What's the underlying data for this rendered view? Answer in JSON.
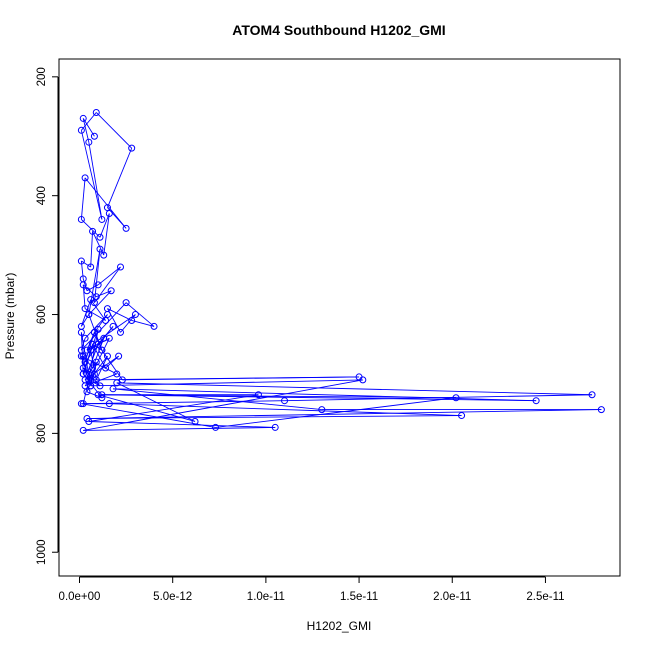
{
  "chart_data": {
    "type": "line",
    "title": "ATOM4 Southbound H1202_GMI",
    "xlabel": "H1202_GMI",
    "ylabel": "Pressure (mbar)",
    "xlim": [
      -1.1e-12,
      2.9e-11
    ],
    "ylim": [
      1040,
      170
    ],
    "y_reversed": true,
    "x_ticks": [
      0,
      5e-12,
      1e-11,
      1.5e-11,
      2e-11,
      2.5e-11
    ],
    "x_tick_labels": [
      "0.0e+00",
      "5.0e-12",
      "1.0e-11",
      "1.5e-11",
      "2.0e-11",
      "2.5e-11"
    ],
    "y_ticks": [
      200,
      400,
      600,
      800,
      1000
    ],
    "y_tick_labels": [
      "200",
      "400",
      "600",
      "800",
      "1000"
    ],
    "grid": false,
    "series": [
      {
        "color": "#0000ff",
        "x": [
          8e-13,
          2e-13,
          5e-13,
          1.2e-12,
          1e-13,
          9e-13,
          2.8e-12,
          1.5e-12,
          2.5e-12,
          3e-13,
          1e-13,
          1.1e-12,
          1.6e-12,
          1.3e-12,
          7e-13,
          6e-13,
          1e-13,
          2e-13,
          4e-13,
          1e-12,
          2.2e-12,
          8e-13,
          1.1e-12,
          5e-13,
          1.7e-12,
          9e-13,
          2e-13,
          3e-13,
          1.4e-12,
          6e-13,
          1e-13,
          5e-13,
          1.2e-12,
          8e-13,
          3e-13,
          1.8e-12,
          1e-12,
          4e-13,
          2e-13,
          7e-13,
          1.3e-12,
          6e-13,
          9e-13,
          1.5e-12,
          3e-13,
          2e-12,
          1e-13,
          5e-13,
          1.1e-12,
          2e-13,
          8e-13,
          4e-13,
          1.2e-12,
          2e-13,
          1e-13,
          6e-13,
          9e-13,
          3e-13,
          2.1e-12,
          1.4e-12,
          7e-13,
          2e-13,
          1e-12,
          5e-13,
          1.6e-12,
          4e-13,
          8e-13,
          1.5e-12,
          3e-13,
          1e-13,
          2.5e-12,
          4e-12,
          2.8e-12,
          1.5e-12,
          2.2e-12,
          3e-12,
          7e-13,
          1.2e-12,
          2.3e-12,
          1.5e-11,
          5e-13,
          2e-13,
          1.1e-11,
          2.75e-11,
          2e-12,
          6.2e-12,
          1e-12,
          2.45e-11,
          1.8e-12,
          1.3e-11,
          2.8e-11,
          4e-13,
          2.05e-11,
          1.6e-12,
          1e-13,
          7.3e-12,
          2.02e-11,
          1.2e-12,
          9.6e-12,
          5e-13,
          1.05e-11,
          2e-13,
          1.52e-11,
          6e-13
        ],
        "y": [
          300,
          270,
          310,
          440,
          290,
          260,
          320,
          420,
          455,
          370,
          440,
          470,
          430,
          500,
          460,
          520,
          510,
          540,
          560,
          550,
          520,
          580,
          490,
          600,
          560,
          570,
          550,
          590,
          610,
          575,
          620,
          600,
          660,
          630,
          680,
          620,
          650,
          700,
          670,
          690,
          640,
          660,
          710,
          670,
          720,
          700,
          670,
          710,
          720,
          690,
          700,
          730,
          740,
          700,
          630,
          720,
          680,
          710,
          670,
          690,
          650,
          700,
          625,
          710,
          640,
          660,
          630,
          600,
          640,
          660,
          580,
          620,
          610,
          590,
          630,
          600,
          650,
          660,
          710,
          705,
          710,
          750,
          745,
          735,
          715,
          780,
          735,
          745,
          725,
          760,
          760,
          775,
          770,
          750,
          750,
          790,
          740,
          735,
          735,
          780,
          790,
          795,
          710,
          720
        ]
      }
    ]
  }
}
